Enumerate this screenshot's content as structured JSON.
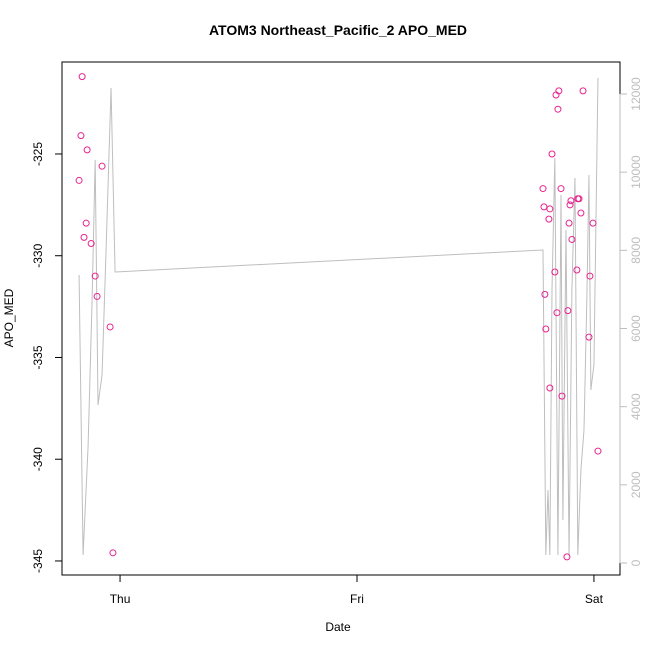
{
  "chart_data": {
    "type": "scatter",
    "title": "ATOM3 Northeast_Pacific_2 APO_MED",
    "x_label": "Date",
    "y_label": "APO_MED",
    "xlim": [
      -0.245,
      2.11
    ],
    "xticks": [
      {
        "value": 0,
        "label": "Thu"
      },
      {
        "value": 1,
        "label": "Fri"
      },
      {
        "value": 2,
        "label": "Sat"
      }
    ],
    "ylim": [
      -345.69,
      -320.48
    ],
    "yticks": [
      -345,
      -340,
      -335,
      -330,
      -325
    ],
    "y2lim": [
      -307,
      12819
    ],
    "y2ticks": [
      0,
      2000,
      4000,
      6000,
      8000,
      10000,
      12000
    ],
    "y2_color": "#bebebe",
    "series": [
      {
        "type": "scatter",
        "color": "#e8238f",
        "x": [
          -0.16,
          -0.165,
          -0.173,
          -0.139,
          -0.143,
          -0.152,
          -0.122,
          -0.105,
          -0.097,
          -0.076,
          -0.042,
          -0.03,
          1.785,
          1.789,
          1.81,
          1.814,
          1.823,
          1.793,
          1.797,
          1.814,
          1.835,
          1.844,
          1.84,
          1.852,
          1.848,
          1.861,
          1.865,
          1.886,
          1.89,
          1.895,
          1.899,
          1.903,
          1.907,
          1.928,
          1.932,
          1.937,
          1.945,
          1.954,
          1.979,
          1.983,
          1.996,
          2.017
        ],
        "values": [
          -321.2,
          -324.1,
          -326.3,
          -324.8,
          -328.4,
          -329.1,
          -329.4,
          -331.0,
          -332.0,
          -325.6,
          -333.5,
          -344.6,
          -326.7,
          -327.6,
          -328.2,
          -327.7,
          -325.0,
          -331.9,
          -333.6,
          -336.5,
          -330.8,
          -332.8,
          -322.1,
          -321.9,
          -322.8,
          -326.7,
          -336.9,
          -344.8,
          -332.7,
          -328.4,
          -327.5,
          -327.3,
          -329.2,
          -330.7,
          -327.2,
          -327.2,
          -327.9,
          -321.9,
          -334.0,
          -331.0,
          -328.4,
          -339.6
        ]
      },
      {
        "type": "line",
        "axis": "y2",
        "color": "#bebebe",
        "x": [
          -0.173,
          -0.156,
          -0.135,
          -0.118,
          -0.105,
          -0.093,
          -0.076,
          -0.059,
          -0.038,
          -0.021,
          1.785,
          1.797,
          1.806,
          1.814,
          1.823,
          1.835,
          1.848,
          1.861,
          1.869,
          1.882,
          1.895,
          1.907,
          1.92,
          1.932,
          1.945,
          1.958,
          1.97,
          1.979,
          1.987,
          2.0,
          2.017
        ],
        "values": [
          7370,
          205,
          2968,
          6730,
          10312,
          4043,
          4811,
          8009,
          12155,
          7446,
          8009,
          205,
          1868,
          205,
          6986,
          10363,
          205,
          9417,
          1100,
          8521,
          205,
          6986,
          9852,
          205,
          2380,
          3403,
          6730,
          9928,
          4427,
          5067,
          12410
        ]
      }
    ]
  }
}
